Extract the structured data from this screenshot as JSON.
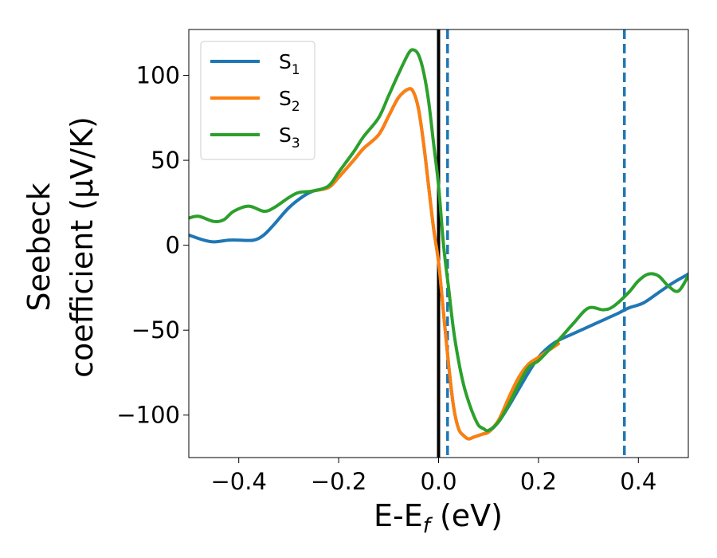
{
  "chart_data": {
    "type": "line",
    "xlabel": "E-E",
    "xlabel_subscript": "f",
    "xlabel_unit": " (eV)",
    "ylabel_line1": "Seebeck",
    "ylabel_line2": "coefficient  (μV/K)",
    "xlim": [
      -0.5,
      0.5
    ],
    "ylim": [
      -125,
      127
    ],
    "x_ticks": [
      -0.4,
      -0.2,
      0.0,
      0.2,
      0.4
    ],
    "x_tick_labels": [
      "−0.4",
      "−0.2",
      "0.0",
      "0.2",
      "0.4"
    ],
    "y_ticks": [
      100,
      50,
      0,
      -50,
      -100
    ],
    "y_tick_labels": [
      "100",
      "50",
      "0",
      "−50",
      "−100"
    ],
    "grid": false,
    "legend_position": "top-left",
    "reference_lines": [
      {
        "type": "solid",
        "x": 0.0,
        "color": "#000000"
      },
      {
        "type": "dashed",
        "x": 0.018,
        "color": "#1f77b4"
      },
      {
        "type": "dashed",
        "x": 0.372,
        "color": "#1f77b4"
      }
    ],
    "series": [
      {
        "name": "S",
        "subscript": "1",
        "color": "#1f77b4",
        "x": [
          -0.5,
          -0.47,
          -0.45,
          -0.42,
          -0.4,
          -0.37,
          -0.35,
          -0.33,
          -0.3,
          -0.27,
          -0.25,
          -0.22,
          -0.2,
          -0.17,
          -0.15,
          -0.12,
          -0.1,
          -0.08,
          -0.06,
          -0.05,
          -0.04,
          -0.03,
          -0.02,
          -0.01,
          0.0,
          0.01,
          0.02,
          0.03,
          0.04,
          0.05,
          0.06,
          0.07,
          0.08,
          0.09,
          0.1,
          0.12,
          0.14,
          0.16,
          0.18,
          0.2,
          0.22,
          0.24,
          0.27,
          0.3,
          0.33,
          0.36,
          0.38,
          0.41,
          0.44,
          0.47,
          0.5
        ],
        "y": [
          6,
          3,
          2,
          3,
          3,
          3,
          6,
          12,
          22,
          29,
          32,
          34,
          40,
          50,
          57,
          65,
          76,
          87,
          92,
          90,
          80,
          60,
          35,
          10,
          -10,
          -40,
          -70,
          -95,
          -108,
          -112,
          -114,
          -113,
          -112,
          -111,
          -110,
          -104,
          -95,
          -85,
          -75,
          -66,
          -60,
          -56,
          -52,
          -48,
          -44,
          -40,
          -37,
          -34,
          -28,
          -22,
          -17
        ]
      },
      {
        "name": "S",
        "subscript": "2",
        "color": "#ff7f0e",
        "x": [
          -0.25,
          -0.22,
          -0.2,
          -0.17,
          -0.15,
          -0.12,
          -0.1,
          -0.08,
          -0.06,
          -0.05,
          -0.04,
          -0.03,
          -0.02,
          -0.01,
          0.0,
          0.01,
          0.02,
          0.03,
          0.04,
          0.05,
          0.06,
          0.07,
          0.08,
          0.09,
          0.1,
          0.12,
          0.14,
          0.16,
          0.18,
          0.2,
          0.22,
          0.24
        ],
        "y": [
          32,
          34,
          40,
          50,
          57,
          65,
          76,
          87,
          92,
          90,
          80,
          60,
          35,
          10,
          -10,
          -40,
          -70,
          -95,
          -108,
          -112,
          -114,
          -113,
          -112,
          -111,
          -110,
          -103,
          -90,
          -78,
          -70,
          -66,
          -62,
          -58
        ]
      },
      {
        "name": "S",
        "subscript": "3",
        "color": "#2ca02c",
        "x": [
          -0.5,
          -0.48,
          -0.45,
          -0.43,
          -0.41,
          -0.38,
          -0.35,
          -0.33,
          -0.3,
          -0.28,
          -0.25,
          -0.22,
          -0.2,
          -0.17,
          -0.15,
          -0.12,
          -0.1,
          -0.08,
          -0.06,
          -0.05,
          -0.04,
          -0.03,
          -0.02,
          -0.01,
          0.0,
          0.01,
          0.02,
          0.03,
          0.04,
          0.05,
          0.06,
          0.07,
          0.08,
          0.09,
          0.1,
          0.12,
          0.14,
          0.16,
          0.18,
          0.2,
          0.22,
          0.24,
          0.27,
          0.3,
          0.33,
          0.35,
          0.38,
          0.4,
          0.42,
          0.44,
          0.46,
          0.48,
          0.5
        ],
        "y": [
          16,
          17,
          14,
          15,
          20,
          23,
          20,
          22,
          28,
          31,
          32,
          35,
          43,
          55,
          64,
          75,
          88,
          101,
          113,
          115,
          112,
          102,
          85,
          60,
          35,
          0,
          -25,
          -50,
          -68,
          -82,
          -92,
          -100,
          -106,
          -108,
          -109,
          -104,
          -94,
          -82,
          -72,
          -68,
          -62,
          -56,
          -46,
          -37,
          -38,
          -36,
          -28,
          -21,
          -17,
          -18,
          -24,
          -27,
          -18
        ]
      }
    ]
  }
}
